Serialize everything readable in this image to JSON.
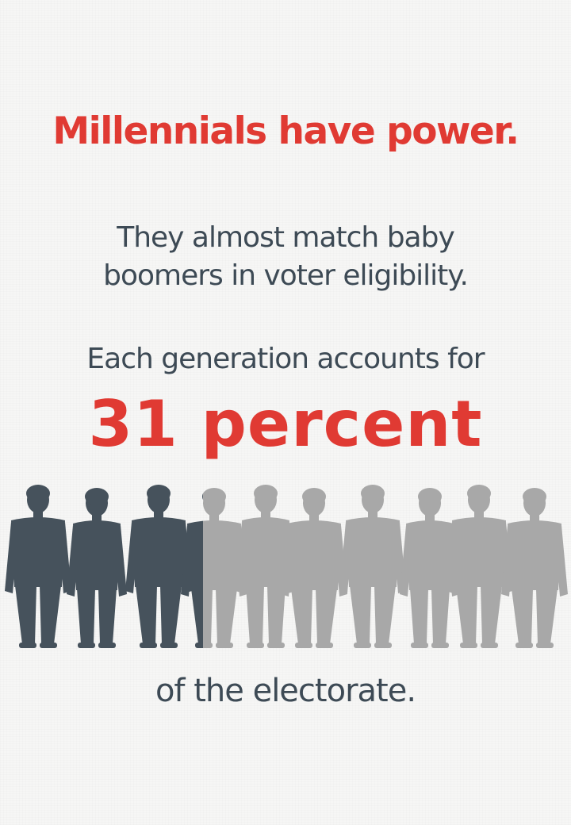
{
  "headline": "Millennials have power.",
  "subtext": {
    "line1": "They almost match baby",
    "line2": "boomers in voter eligibility."
  },
  "lead": "Each generation accounts for",
  "stat": "31 percent",
  "closing": "of the electorate.",
  "colors": {
    "accent": "#e03a33",
    "dark_figure": "#46525c",
    "light_figure": "#a8a8a8",
    "text": "#3d4a55",
    "background": "#f6f6f5"
  },
  "figure_icon": "person-silhouette-icon",
  "figures_count": 11,
  "dark_share_percent": 31
}
